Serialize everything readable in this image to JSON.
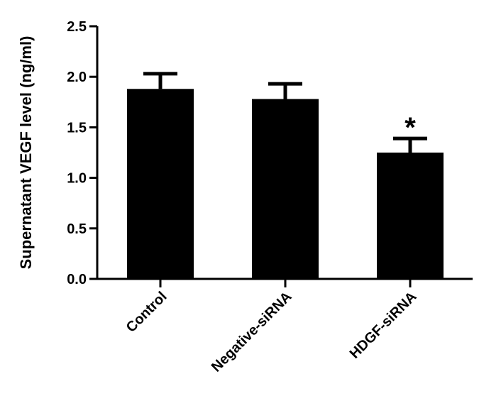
{
  "chart_data": {
    "type": "bar",
    "title": "",
    "xlabel": "",
    "ylabel": "Supernatant VEGF level (ng/ml)",
    "categories": [
      "Control",
      "Negative-siRNA",
      "HDGF-siRNA"
    ],
    "values": [
      1.88,
      1.78,
      1.25
    ],
    "error_upper": [
      2.03,
      1.93,
      1.39
    ],
    "annotations": [
      "",
      "",
      "*"
    ],
    "ylim": [
      0,
      2.5
    ],
    "yticks": [
      0.0,
      0.5,
      1.0,
      1.5,
      2.0,
      2.5
    ],
    "ytick_labels": [
      "0.0",
      "0.5",
      "1.0",
      "1.5",
      "2.0",
      "2.5"
    ],
    "grid": false,
    "bar_color": "#000000"
  }
}
